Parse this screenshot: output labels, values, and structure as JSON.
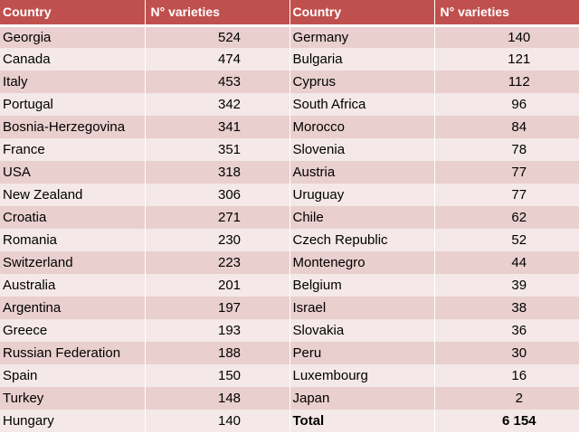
{
  "headers": {
    "country_left": "Country",
    "varieties_left": "N° varieties",
    "country_right": "Country",
    "varieties_right": "N° varieties"
  },
  "rows": [
    {
      "c1": "Georgia",
      "v1": "524",
      "c2": "Germany",
      "v2": "140"
    },
    {
      "c1": "Canada",
      "v1": "474",
      "c2": "Bulgaria",
      "v2": "121"
    },
    {
      "c1": "Italy",
      "v1": "453",
      "c2": "Cyprus",
      "v2": "112"
    },
    {
      "c1": "Portugal",
      "v1": "342",
      "c2": "South Africa",
      "v2": "96"
    },
    {
      "c1": "Bosnia-Herzegovina",
      "v1": "341",
      "c2": "Morocco",
      "v2": "84"
    },
    {
      "c1": "France",
      "v1": "351",
      "c2": "Slovenia",
      "v2": "78"
    },
    {
      "c1": "USA",
      "v1": "318",
      "c2": "Austria",
      "v2": "77"
    },
    {
      "c1": "New Zealand",
      "v1": "306",
      "c2": "Uruguay",
      "v2": "77"
    },
    {
      "c1": "Croatia",
      "v1": "271",
      "c2": "Chile",
      "v2": "62"
    },
    {
      "c1": "Romania",
      "v1": "230",
      "c2": "Czech Republic",
      "v2": "52"
    },
    {
      "c1": "Switzerland",
      "v1": "223",
      "c2": "Montenegro",
      "v2": "44"
    },
    {
      "c1": "Australia",
      "v1": "201",
      "c2": "Belgium",
      "v2": "39"
    },
    {
      "c1": "Argentina",
      "v1": "197",
      "c2": "Israel",
      "v2": "38"
    },
    {
      "c1": "Greece",
      "v1": "193",
      "c2": "Slovakia",
      "v2": "36"
    },
    {
      "c1": "Russian Federation",
      "v1": "188",
      "c2": "Peru",
      "v2": "30"
    },
    {
      "c1": "Spain",
      "v1": "150",
      "c2": "Luxembourg",
      "v2": "16"
    },
    {
      "c1": "Turkey",
      "v1": "148",
      "c2": "Japan",
      "v2": "2"
    },
    {
      "c1": "Hungary",
      "v1": "140",
      "c2": "Total",
      "v2": "6 154"
    }
  ],
  "colors": {
    "header_bg": "#c0504d",
    "row_dark": "#e9cfce",
    "row_light": "#f4e8e8"
  }
}
